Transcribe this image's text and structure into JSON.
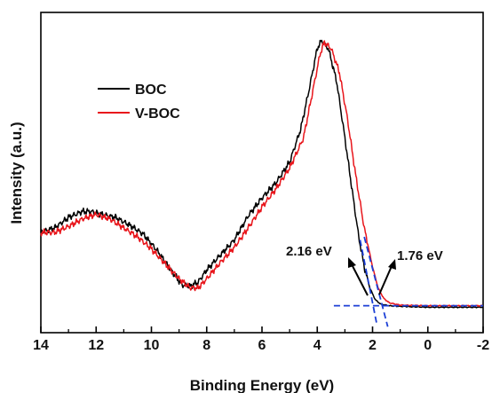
{
  "chart_data": {
    "type": "line",
    "title": "",
    "xlabel": "Binding Energy (eV)",
    "ylabel": "Intensity (a.u.)",
    "x_reversed": true,
    "xlim": [
      14,
      -2
    ],
    "ylim": [
      -0.07,
      1.0
    ],
    "x_ticks": [
      "14",
      "12",
      "10",
      "8",
      "6",
      "4",
      "2",
      "0",
      "-2"
    ],
    "y_ticks_shown": false,
    "grid": false,
    "legend_position": "top-left",
    "series": [
      {
        "name": "BOC",
        "color": "#000000",
        "points": [
          [
            14.0,
            0.265
          ],
          [
            13.5,
            0.28
          ],
          [
            13.0,
            0.315
          ],
          [
            12.5,
            0.335
          ],
          [
            12.2,
            0.335
          ],
          [
            11.8,
            0.325
          ],
          [
            11.3,
            0.315
          ],
          [
            10.8,
            0.29
          ],
          [
            10.3,
            0.26
          ],
          [
            9.8,
            0.205
          ],
          [
            9.3,
            0.14
          ],
          [
            8.9,
            0.09
          ],
          [
            8.6,
            0.085
          ],
          [
            8.3,
            0.1
          ],
          [
            8.0,
            0.14
          ],
          [
            7.5,
            0.19
          ],
          [
            7.0,
            0.24
          ],
          [
            6.5,
            0.32
          ],
          [
            6.0,
            0.38
          ],
          [
            5.5,
            0.43
          ],
          [
            5.0,
            0.5
          ],
          [
            4.6,
            0.61
          ],
          [
            4.3,
            0.74
          ],
          [
            4.0,
            0.88
          ],
          [
            3.85,
            0.905
          ],
          [
            3.6,
            0.88
          ],
          [
            3.3,
            0.77
          ],
          [
            3.0,
            0.58
          ],
          [
            2.7,
            0.38
          ],
          [
            2.5,
            0.25
          ],
          [
            2.3,
            0.15
          ],
          [
            2.1,
            0.08
          ],
          [
            1.9,
            0.04
          ],
          [
            1.7,
            0.025
          ],
          [
            1.4,
            0.02
          ],
          [
            1.0,
            0.018
          ],
          [
            0.0,
            0.015
          ],
          [
            -1.0,
            0.015
          ],
          [
            -2.0,
            0.015
          ]
        ]
      },
      {
        "name": "V-BOC",
        "color": "#e8151b",
        "points": [
          [
            14.0,
            0.265
          ],
          [
            13.5,
            0.265
          ],
          [
            13.0,
            0.285
          ],
          [
            12.5,
            0.31
          ],
          [
            12.0,
            0.325
          ],
          [
            11.5,
            0.31
          ],
          [
            11.0,
            0.28
          ],
          [
            10.5,
            0.25
          ],
          [
            10.0,
            0.21
          ],
          [
            9.5,
            0.16
          ],
          [
            9.0,
            0.11
          ],
          [
            8.6,
            0.08
          ],
          [
            8.3,
            0.08
          ],
          [
            8.0,
            0.11
          ],
          [
            7.5,
            0.165
          ],
          [
            7.0,
            0.215
          ],
          [
            6.5,
            0.28
          ],
          [
            6.0,
            0.35
          ],
          [
            5.5,
            0.41
          ],
          [
            5.0,
            0.48
          ],
          [
            4.5,
            0.58
          ],
          [
            4.2,
            0.72
          ],
          [
            3.9,
            0.86
          ],
          [
            3.75,
            0.9
          ],
          [
            3.5,
            0.88
          ],
          [
            3.2,
            0.8
          ],
          [
            2.9,
            0.64
          ],
          [
            2.6,
            0.45
          ],
          [
            2.3,
            0.28
          ],
          [
            2.0,
            0.15
          ],
          [
            1.8,
            0.08
          ],
          [
            1.6,
            0.045
          ],
          [
            1.4,
            0.03
          ],
          [
            1.0,
            0.022
          ],
          [
            0.0,
            0.02
          ],
          [
            -1.0,
            0.02
          ],
          [
            -2.0,
            0.02
          ]
        ]
      }
    ],
    "annotations": [
      {
        "text": "2.16 eV",
        "x": 2.16
      },
      {
        "text": "1.76 eV",
        "x": 1.76
      }
    ],
    "guide_line_color": "#1c3fd6"
  }
}
